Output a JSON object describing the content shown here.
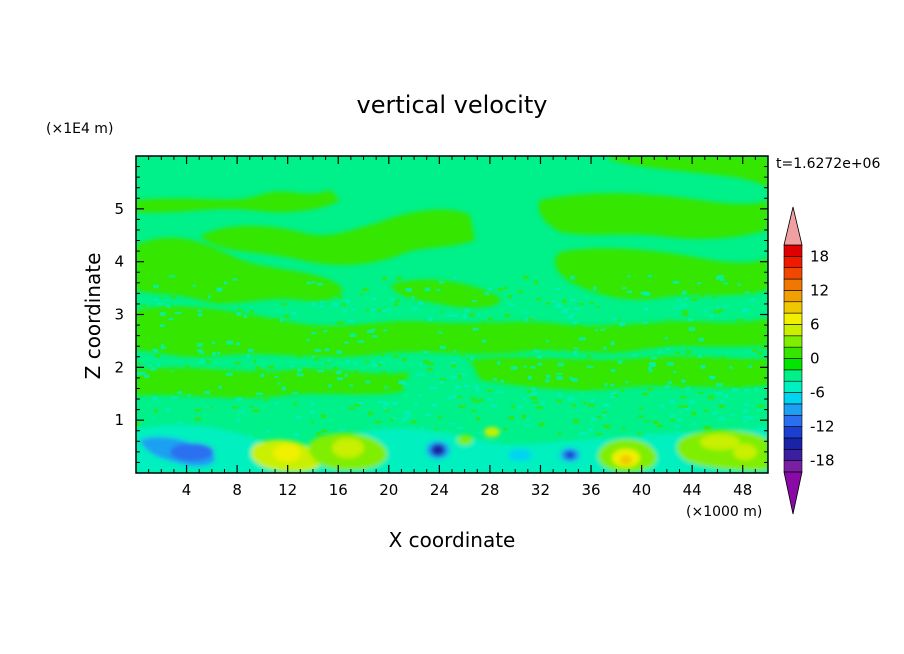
{
  "chart_data": {
    "type": "heatmap",
    "title": "vertical velocity",
    "xlabel": "X coordinate",
    "ylabel": "Z coordinate",
    "x_unit": "(×1000 m)",
    "y_unit": "(×1E4 m)",
    "time_label": "t=1.6272e+06",
    "xlim": [
      0,
      50
    ],
    "ylim": [
      0,
      6
    ],
    "x_ticks": [
      4,
      8,
      12,
      16,
      20,
      24,
      28,
      32,
      36,
      40,
      44,
      48
    ],
    "y_ticks": [
      1,
      2,
      3,
      4,
      5
    ],
    "colorbar": {
      "levels": [
        -20,
        -18,
        -16,
        -14,
        -12,
        -10,
        -8,
        -6,
        -4,
        -2,
        0,
        2,
        4,
        6,
        8,
        10,
        12,
        14,
        16,
        18,
        20
      ],
      "tick_labels": [
        "18",
        "12",
        "6",
        "0",
        "-6",
        "-12",
        "-18"
      ],
      "colors": [
        "#7a1fa2",
        "#3b1f9e",
        "#1a22a8",
        "#1c3fd0",
        "#2a6ff0",
        "#1ea0f2",
        "#00d4f0",
        "#00f0c0",
        "#00f08a",
        "#00e600",
        "#36e600",
        "#80ee00",
        "#c8f000",
        "#f0f000",
        "#f0c800",
        "#f0a000",
        "#f07800",
        "#f04800",
        "#f01a00",
        "#e00000"
      ],
      "extend_colors": {
        "low": "#8a0aa8",
        "high": "#f0a0a0"
      }
    },
    "features": [
      {
        "kind": "background",
        "value": -1
      },
      {
        "kind": "blob",
        "x": 5,
        "y": 0.4,
        "value": -12
      },
      {
        "kind": "blob",
        "x": 12,
        "y": 0.35,
        "value": 8
      },
      {
        "kind": "blob",
        "x": 16.5,
        "y": 0.45,
        "value": 6
      },
      {
        "kind": "blob",
        "x": 24,
        "y": 0.45,
        "value": -16
      },
      {
        "kind": "blob",
        "x": 34,
        "y": 0.3,
        "value": -12
      },
      {
        "kind": "blob",
        "x": 38.5,
        "y": 0.3,
        "value": 8
      },
      {
        "kind": "blob",
        "x": 46,
        "y": 0.5,
        "value": 6
      }
    ]
  }
}
